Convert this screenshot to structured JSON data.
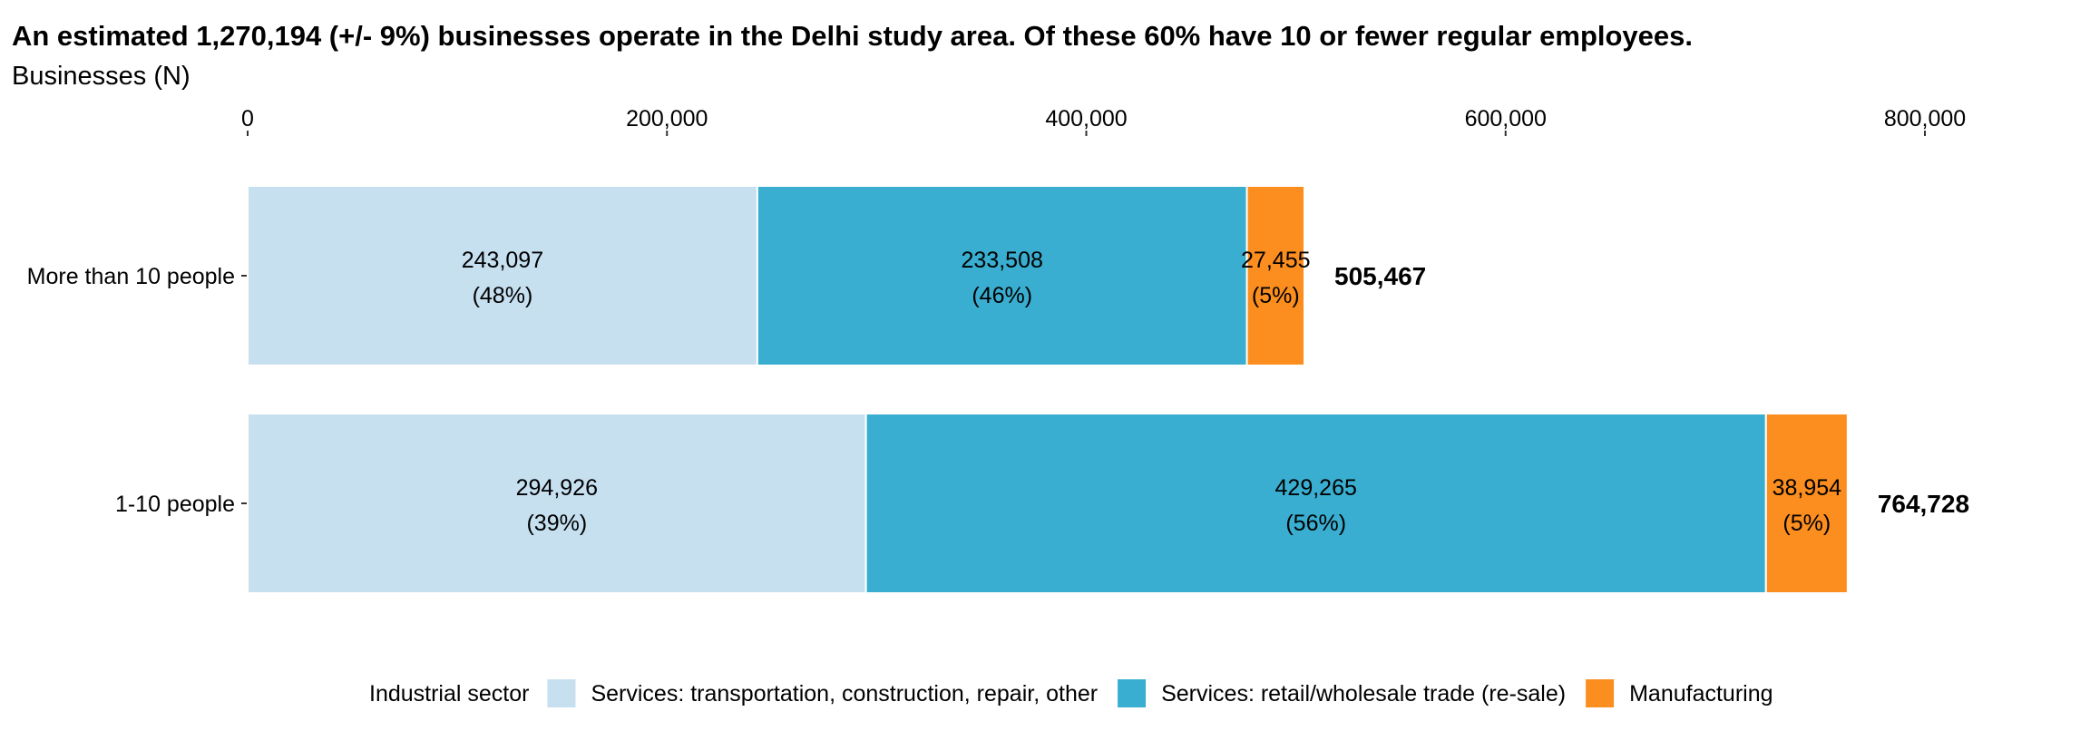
{
  "chart_data": {
    "type": "bar",
    "orientation": "horizontal",
    "stacked": true,
    "title": "An estimated 1,270,194 (+/- 9%) businesses operate in the Delhi study area. Of these 60% have 10 or fewer regular employees.",
    "subtitle": "Businesses (N)",
    "xlim": [
      0,
      800000
    ],
    "x_ticks": [
      0,
      200000,
      400000,
      600000,
      800000
    ],
    "x_tick_labels": [
      "0",
      "200,000",
      "400,000",
      "600,000",
      "800,000"
    ],
    "x_axis_position": "top",
    "grid": false,
    "categories": [
      "More than 10 people",
      "1-10 people"
    ],
    "series": [
      {
        "name": "Services: transportation, construction, repair, other",
        "color": "#c6e0f0",
        "values": [
          243097,
          294926
        ],
        "labels": [
          "243,097",
          "294,926"
        ],
        "pct_labels": [
          "(48%)",
          "(39%)"
        ]
      },
      {
        "name": "Services: retail/wholesale trade (re-sale)",
        "color": "#39aed0",
        "values": [
          233508,
          429265
        ],
        "labels": [
          "233,508",
          "429,265"
        ],
        "pct_labels": [
          "(46%)",
          "(56%)"
        ]
      },
      {
        "name": "Manufacturing",
        "color": "#fb8e1f",
        "values": [
          27455,
          38954
        ],
        "labels": [
          "27,455",
          "38,954"
        ],
        "pct_labels": [
          "(5%)",
          "(5%)"
        ]
      }
    ],
    "totals": [
      505467,
      764728
    ],
    "total_labels": [
      "505,467",
      "764,728"
    ],
    "legend": {
      "title": "Industrial sector",
      "position": "bottom"
    }
  }
}
